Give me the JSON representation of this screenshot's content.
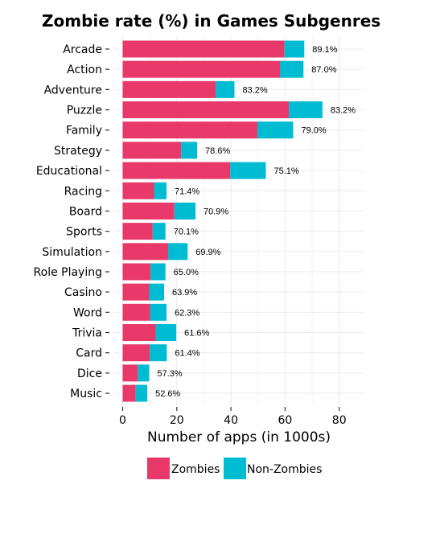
{
  "chart_data": {
    "type": "bar",
    "stacked": true,
    "orientation": "horizontal",
    "title": "Zombie rate (%) in Games Subgenres",
    "xlabel": "Number of apps (in 1000s)",
    "ylabel": "",
    "xlim": [
      0,
      88
    ],
    "xticks": [
      0,
      20,
      40,
      60,
      80
    ],
    "grid": true,
    "legend_position": "bottom",
    "categories": [
      "Arcade",
      "Action",
      "Adventure",
      "Puzzle",
      "Family",
      "Strategy",
      "Educational",
      "Racing",
      "Board",
      "Sports",
      "Simulation",
      "Role Playing",
      "Casino",
      "Word",
      "Trivia",
      "Card",
      "Dice",
      "Music"
    ],
    "series": [
      {
        "name": "Zombies",
        "color": "#E8396A",
        "values": [
          59.8,
          58.1,
          34.4,
          61.4,
          49.8,
          21.6,
          39.7,
          11.6,
          19.1,
          11.1,
          16.8,
          10.3,
          9.8,
          10.1,
          12.2,
          10.0,
          5.6,
          4.8
        ]
      },
      {
        "name": "Non-Zombies",
        "color": "#00BCD3",
        "values": [
          7.3,
          8.7,
          6.9,
          12.4,
          13.2,
          5.9,
          13.2,
          4.6,
          7.8,
          4.7,
          7.2,
          5.5,
          5.5,
          6.1,
          7.6,
          6.3,
          4.2,
          4.3
        ]
      }
    ],
    "rate_labels": [
      "89.1%",
      "87.0%",
      "83.2%",
      "83.2%",
      "79.0%",
      "78.6%",
      "75.1%",
      "71.4%",
      "70.9%",
      "70.1%",
      "69.9%",
      "65.0%",
      "63.9%",
      "62.3%",
      "61.6%",
      "61.4%",
      "57.3%",
      "52.6%"
    ]
  }
}
